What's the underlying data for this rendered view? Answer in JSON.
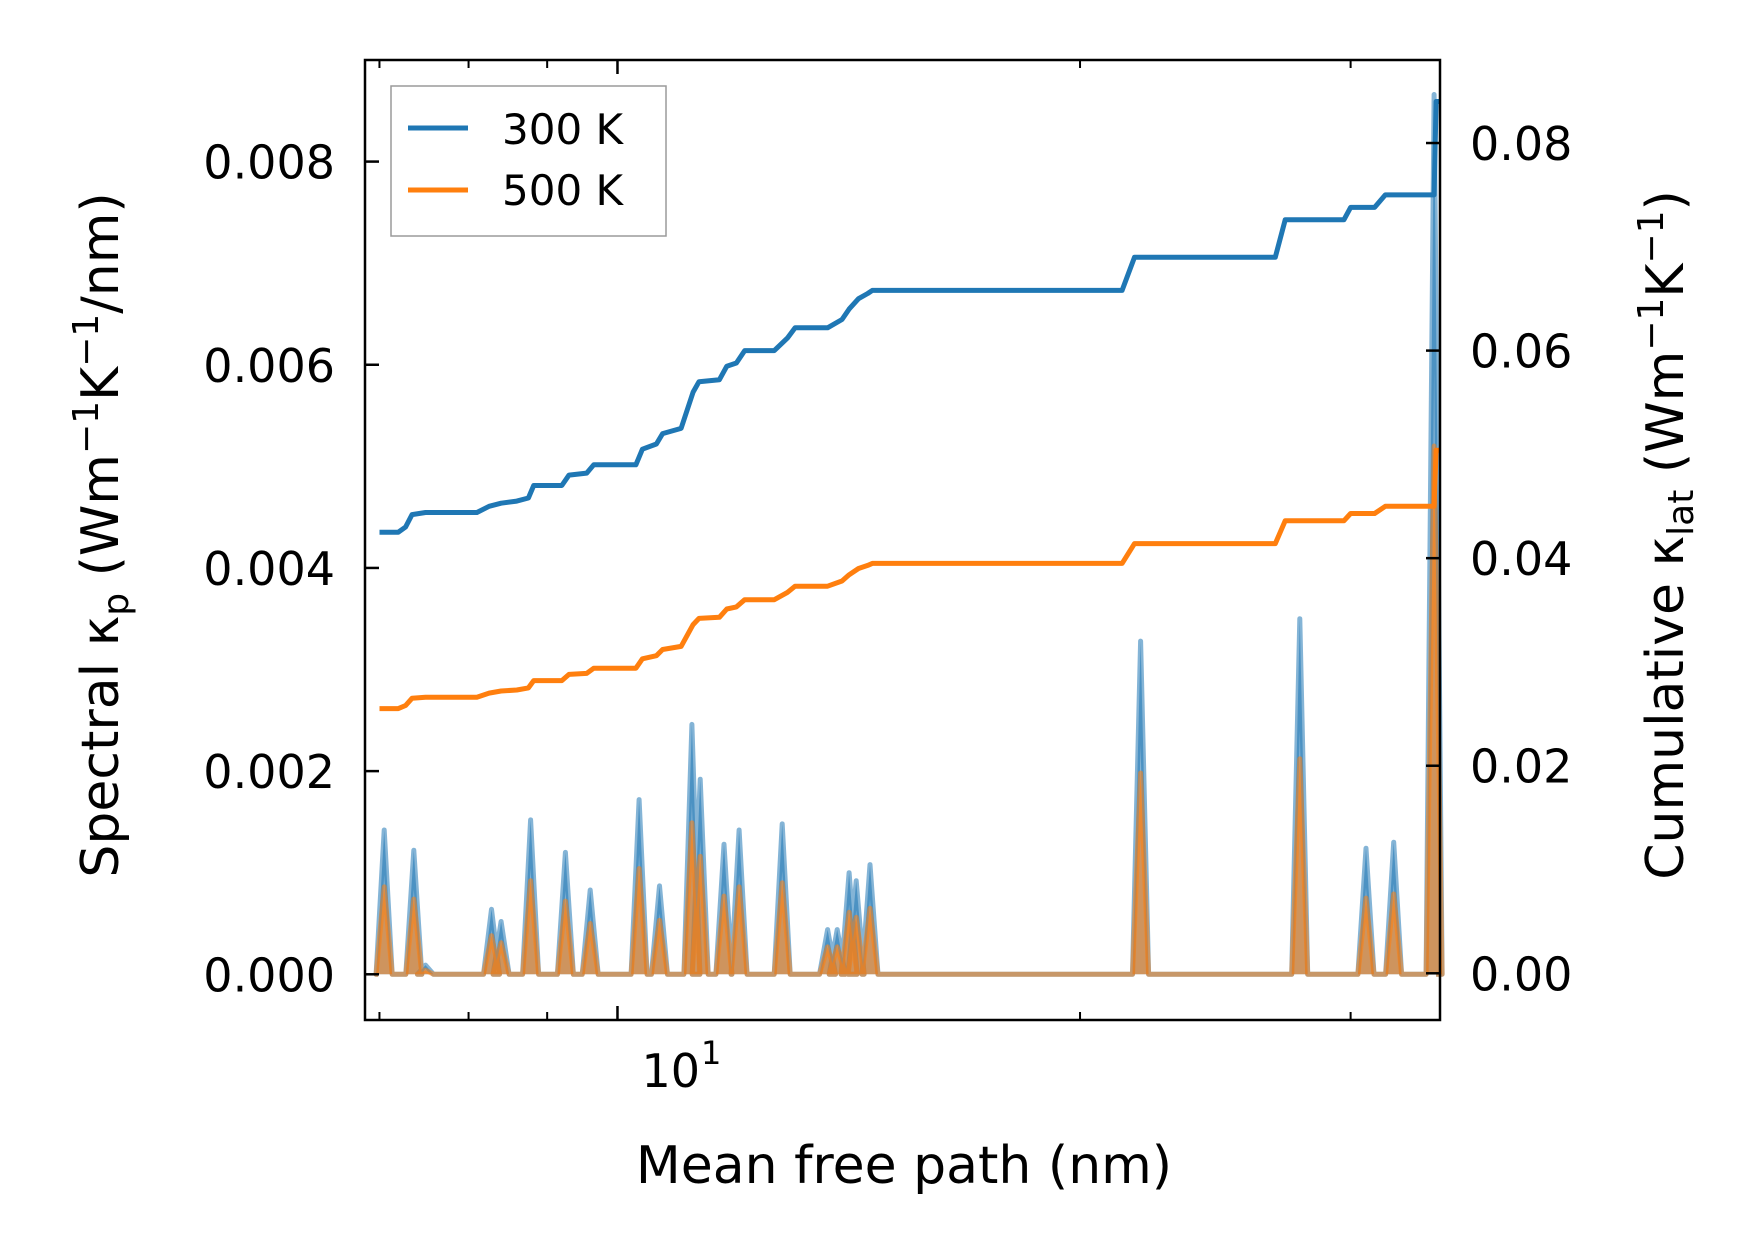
{
  "chart_data": {
    "type": "line",
    "xlabel": "Mean free path (nm)",
    "xscale": "log",
    "xlim": [
      6.85,
      34.3
    ],
    "x_tick_label": {
      "base": "10",
      "exp": "1"
    },
    "left_axis": {
      "label_parts": [
        "Spectral κ",
        "p",
        " (Wm",
        "−1",
        "K",
        "−1",
        "/nm)"
      ],
      "ylim": [
        -0.00045,
        0.009
      ],
      "ticks": [
        "0.000",
        "0.002",
        "0.004",
        "0.006",
        "0.008"
      ]
    },
    "right_axis": {
      "label_parts": [
        "Cumulative κ",
        "lat",
        " (Wm",
        "−1",
        "K",
        "−1",
        ")"
      ],
      "ylim": [
        -0.0045,
        0.088
      ],
      "ticks": [
        "0.00",
        "0.02",
        "0.04",
        "0.06",
        "0.08"
      ]
    },
    "legend": {
      "position": "top-left",
      "entries": [
        {
          "label": "300 K",
          "color": "#1f77b4"
        },
        {
          "label": "500 K",
          "color": "#ff7f0e"
        }
      ]
    },
    "series": [
      {
        "name": "300 K",
        "color": "#1f77b4",
        "spectral_peaks": [
          [
            7.05,
            0.00142
          ],
          [
            7.37,
            0.00122
          ],
          [
            7.5,
            9e-05
          ],
          [
            8.28,
            0.00064
          ],
          [
            8.4,
            0.00052
          ],
          [
            8.78,
            0.00152
          ],
          [
            9.25,
            0.0012
          ],
          [
            9.6,
            0.00083
          ],
          [
            10.33,
            0.00172
          ],
          [
            10.65,
            0.00087
          ],
          [
            11.18,
            0.00246
          ],
          [
            11.32,
            0.00192
          ],
          [
            11.73,
            0.00128
          ],
          [
            12.0,
            0.00142
          ],
          [
            12.8,
            0.00148
          ],
          [
            13.7,
            0.00044
          ],
          [
            13.9,
            0.00044
          ],
          [
            14.15,
            0.001
          ],
          [
            14.3,
            0.00092
          ],
          [
            14.6,
            0.00108
          ],
          [
            21.9,
            0.00328
          ],
          [
            27.8,
            0.0035
          ],
          [
            30.7,
            0.00124
          ],
          [
            32.0,
            0.0013
          ],
          [
            34.0,
            0.00866
          ]
        ],
        "cumulative": [
          [
            7.0,
            0.0425
          ],
          [
            7.2,
            0.0425
          ],
          [
            7.28,
            0.043
          ],
          [
            7.35,
            0.0442
          ],
          [
            7.5,
            0.0444
          ],
          [
            8.1,
            0.0444
          ],
          [
            8.25,
            0.045
          ],
          [
            8.4,
            0.0453
          ],
          [
            8.6,
            0.0455
          ],
          [
            8.75,
            0.0458
          ],
          [
            8.82,
            0.047
          ],
          [
            9.2,
            0.047
          ],
          [
            9.3,
            0.048
          ],
          [
            9.55,
            0.0482
          ],
          [
            9.65,
            0.049
          ],
          [
            10.28,
            0.049
          ],
          [
            10.38,
            0.0505
          ],
          [
            10.6,
            0.051
          ],
          [
            10.7,
            0.052
          ],
          [
            11.0,
            0.0525
          ],
          [
            11.2,
            0.056
          ],
          [
            11.3,
            0.057
          ],
          [
            11.65,
            0.0572
          ],
          [
            11.78,
            0.0585
          ],
          [
            11.95,
            0.0588
          ],
          [
            12.1,
            0.06
          ],
          [
            12.65,
            0.06
          ],
          [
            12.9,
            0.0612
          ],
          [
            13.05,
            0.0622
          ],
          [
            13.7,
            0.0622
          ],
          [
            14.0,
            0.063
          ],
          [
            14.15,
            0.064
          ],
          [
            14.35,
            0.065
          ],
          [
            14.55,
            0.0655
          ],
          [
            14.65,
            0.0658
          ],
          [
            21.3,
            0.0658
          ],
          [
            21.7,
            0.069
          ],
          [
            26.8,
            0.069
          ],
          [
            27.2,
            0.0726
          ],
          [
            29.7,
            0.0726
          ],
          [
            30.0,
            0.0738
          ],
          [
            31.1,
            0.0738
          ],
          [
            31.6,
            0.075
          ],
          [
            34.0,
            0.075
          ],
          [
            34.1,
            0.084
          ],
          [
            34.3,
            0.084
          ]
        ]
      },
      {
        "name": "500 K",
        "color": "#ff7f0e",
        "spectral_peaks": [
          [
            7.05,
            0.00086
          ],
          [
            7.37,
            0.00074
          ],
          [
            7.5,
            4e-05
          ],
          [
            8.28,
            0.00038
          ],
          [
            8.4,
            0.00031
          ],
          [
            8.78,
            0.00092
          ],
          [
            9.25,
            0.00072
          ],
          [
            9.6,
            0.0005
          ],
          [
            10.33,
            0.00104
          ],
          [
            10.65,
            0.00053
          ],
          [
            11.18,
            0.00149
          ],
          [
            11.32,
            0.00116
          ],
          [
            11.73,
            0.00077
          ],
          [
            12.0,
            0.00086
          ],
          [
            12.8,
            0.0009
          ],
          [
            13.7,
            0.00027
          ],
          [
            13.9,
            0.00027
          ],
          [
            14.15,
            0.00061
          ],
          [
            14.3,
            0.00056
          ],
          [
            14.6,
            0.00065
          ],
          [
            21.9,
            0.00198
          ],
          [
            27.8,
            0.00212
          ],
          [
            30.7,
            0.00075
          ],
          [
            32.0,
            0.00079
          ],
          [
            34.0,
            0.0052
          ]
        ],
        "cumulative": [
          [
            7.0,
            0.0255
          ],
          [
            7.2,
            0.0255
          ],
          [
            7.28,
            0.0258
          ],
          [
            7.35,
            0.0265
          ],
          [
            7.5,
            0.0266
          ],
          [
            8.1,
            0.0266
          ],
          [
            8.25,
            0.027
          ],
          [
            8.4,
            0.0272
          ],
          [
            8.6,
            0.0273
          ],
          [
            8.75,
            0.0275
          ],
          [
            8.82,
            0.0282
          ],
          [
            9.2,
            0.0282
          ],
          [
            9.3,
            0.0288
          ],
          [
            9.55,
            0.0289
          ],
          [
            9.65,
            0.0294
          ],
          [
            10.28,
            0.0294
          ],
          [
            10.38,
            0.0303
          ],
          [
            10.6,
            0.0306
          ],
          [
            10.7,
            0.0312
          ],
          [
            11.0,
            0.0315
          ],
          [
            11.2,
            0.0336
          ],
          [
            11.3,
            0.0342
          ],
          [
            11.65,
            0.0343
          ],
          [
            11.78,
            0.0351
          ],
          [
            11.95,
            0.0353
          ],
          [
            12.1,
            0.036
          ],
          [
            12.65,
            0.036
          ],
          [
            12.9,
            0.0367
          ],
          [
            13.05,
            0.0373
          ],
          [
            13.7,
            0.0373
          ],
          [
            14.0,
            0.0378
          ],
          [
            14.15,
            0.0384
          ],
          [
            14.35,
            0.039
          ],
          [
            14.55,
            0.0393
          ],
          [
            14.65,
            0.0395
          ],
          [
            21.3,
            0.0395
          ],
          [
            21.7,
            0.0414
          ],
          [
            26.8,
            0.0414
          ],
          [
            27.2,
            0.0436
          ],
          [
            29.7,
            0.0436
          ],
          [
            30.0,
            0.0443
          ],
          [
            31.1,
            0.0443
          ],
          [
            31.6,
            0.045
          ],
          [
            34.0,
            0.045
          ],
          [
            34.1,
            0.0504
          ],
          [
            34.3,
            0.0504
          ]
        ]
      }
    ]
  }
}
